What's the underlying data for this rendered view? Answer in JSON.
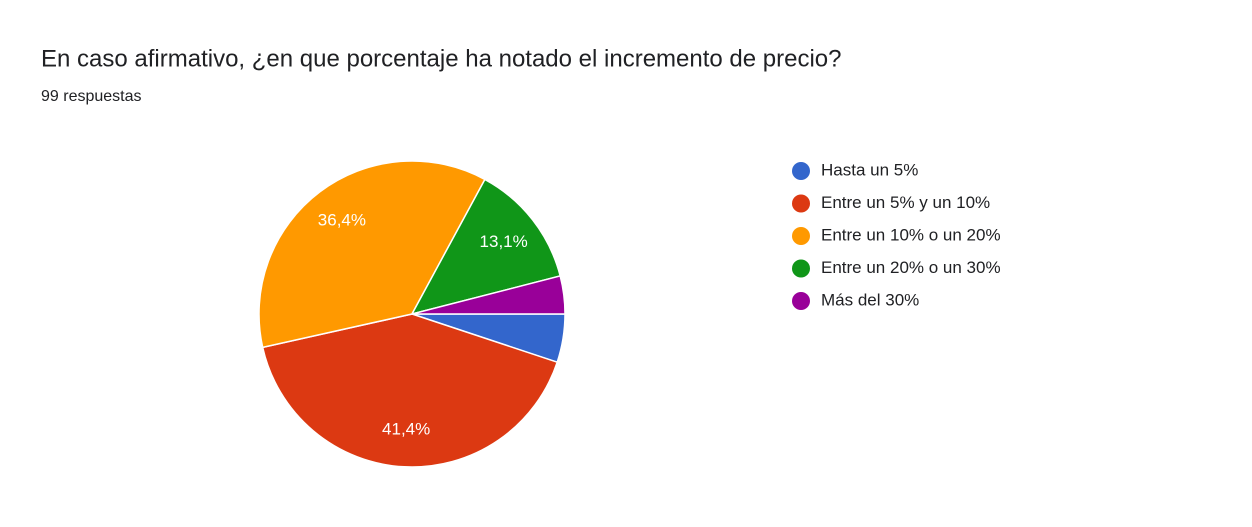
{
  "chart_data": {
    "type": "pie",
    "title": "En caso afirmativo, ¿en que porcentaje ha notado el incremento de precio?",
    "subtitle": "99 respuestas",
    "categories": [
      "Hasta un 5%",
      "Entre un 5% y un 10%",
      "Entre un 10% o un 20%",
      "Entre un 20% o un 30%",
      "Más del 30%"
    ],
    "values": [
      5.1,
      41.4,
      36.4,
      13.1,
      4.0
    ],
    "value_labels": [
      null,
      "41,4%",
      "36,4%",
      "13,1%",
      null
    ],
    "colors": [
      "#3366cc",
      "#dc3912",
      "#ff9900",
      "#109618",
      "#990099"
    ],
    "legend": "right"
  }
}
